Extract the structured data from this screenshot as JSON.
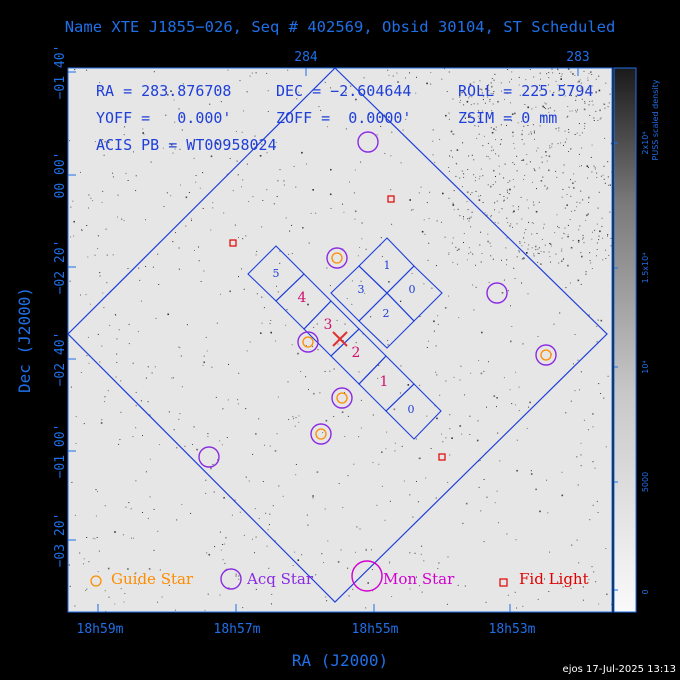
{
  "title": "Name XTE J1855−026, Seq # 402569, Obsid 30104, ST Scheduled",
  "info": {
    "ra": "RA = 283.876708",
    "dec": "DEC = −2.604644",
    "roll": "ROLL = 225.5794",
    "yoff": "YOFF =   0.000'",
    "zoff": "ZOFF =  0.0000'",
    "zsim": "ZSIM = 0 mm",
    "acis": "ACIS PB = WT00958024"
  },
  "axes": {
    "xlabel": "RA (J2000)",
    "ylabel": "Dec (J2000)",
    "top_ticks": [
      "284",
      "283"
    ],
    "bottom_ticks": [
      "18h59m",
      "18h57m",
      "18h55m",
      "18h53m"
    ],
    "left_ticks": [
      "−01 40'",
      "00 00'",
      "−02 20'",
      "−02 40'",
      "−01 00'",
      "−03 20'"
    ]
  },
  "colorbar": {
    "label": "PUSS scaled density",
    "ticks": [
      "2x10⁴",
      "1.5x10⁴",
      "10⁴",
      "5000",
      "0"
    ]
  },
  "chips": {
    "ccd_numbers": [
      "5",
      "1",
      "3",
      "0",
      "2",
      "0"
    ],
    "magenta_numbers": [
      "4",
      "3",
      "2",
      "1"
    ]
  },
  "legend": {
    "guide": "Guide Star",
    "acq": "Acq Star",
    "mon": "Mon Star",
    "fid": "Fid Light"
  },
  "footer": "ejos 17-Jul-2025 13:13",
  "colors": {
    "blue": "#1f6fe6",
    "orange": "#ff8c00",
    "purple": "#8a2be2",
    "magenta": "#d000d0",
    "red": "#e00000"
  }
}
